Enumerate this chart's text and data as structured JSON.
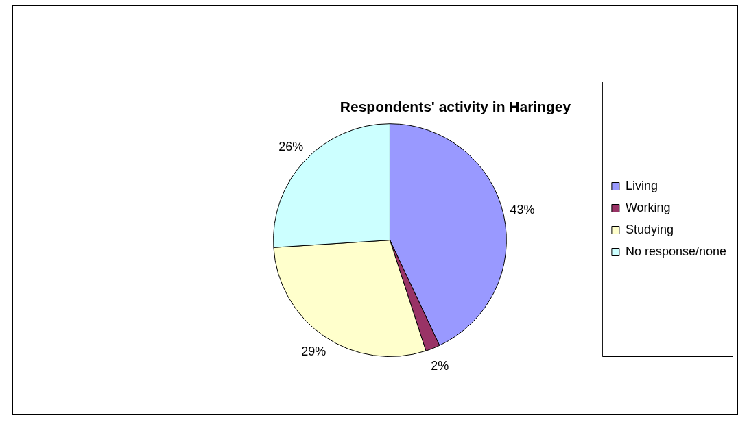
{
  "chart_data": {
    "type": "pie",
    "title": "Respondents' activity in Haringey",
    "categories": [
      "Living",
      "Working",
      "Studying",
      "No response/none"
    ],
    "values": [
      43,
      2,
      29,
      26
    ],
    "colors": [
      "#9999ff",
      "#993366",
      "#ffffcc",
      "#ccffff"
    ],
    "value_labels": [
      "43%",
      "2%",
      "29%",
      "26%"
    ],
    "legend": "right"
  }
}
